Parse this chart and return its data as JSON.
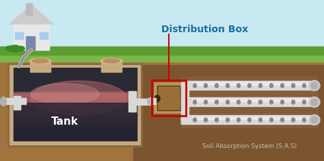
{
  "title": "Distribution Box",
  "subtitle": "Soil Absorption System (S.A.S)",
  "tank_label": "Tank",
  "bg_sky": "#c8e8f2",
  "bg_grass": "#7ab648",
  "bg_soil": "#a0743c",
  "bg_soil_dark": "#7a5530",
  "tank_outer": "#c8aa82",
  "tank_inner_dark": "#2a2a35",
  "tank_liquid_pink": "#c97070",
  "dist_box_color": "#b8965a",
  "pipe_color": "#d8d8d8",
  "pipe_dark": "#909090",
  "house_wall": "#e8e8e8",
  "grass_color": "#5a9e2f",
  "arrow_color": "#cc0000",
  "label_color": "#1a6fa0",
  "figsize": [
    4.74,
    2.35
  ],
  "dpi": 100
}
